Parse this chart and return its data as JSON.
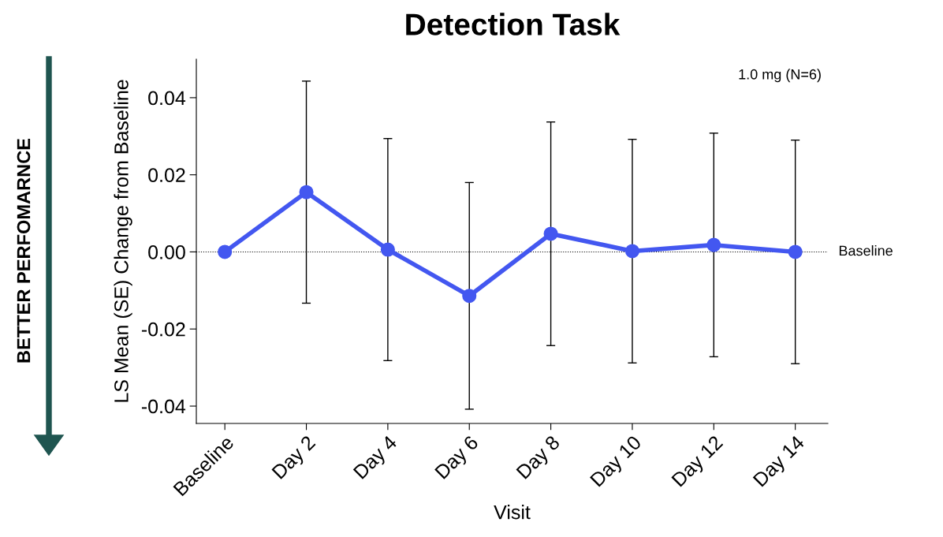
{
  "chart_data": {
    "type": "line",
    "title": "Detection Task",
    "xlabel": "Visit",
    "ylabel": "LS Mean (SE) Change from Baseline",
    "categories": [
      "Baseline",
      "Day 2",
      "Day 4",
      "Day 6",
      "Day 8",
      "Day 10",
      "Day 12",
      "Day 14"
    ],
    "series": [
      {
        "color": "#4357f0",
        "values": [
          0,
          0.0155,
          0.0006,
          -0.0114,
          0.0047,
          0.0002,
          0.0018,
          0
        ],
        "errors": [
          null,
          0.0288,
          0.0288,
          0.0294,
          0.029,
          0.029,
          0.029,
          0.029
        ]
      }
    ],
    "ylim": [
      -0.0445,
      0.05
    ],
    "yticks": [
      {
        "value": -0.04,
        "label": "-0.04"
      },
      {
        "value": -0.02,
        "label": "-0.02"
      },
      {
        "value": 0,
        "label": "0.00"
      },
      {
        "value": 0.02,
        "label": "0.02"
      },
      {
        "value": 0.04,
        "label": "0.04"
      }
    ],
    "ref_lines": [
      {
        "axis": "y",
        "value": 0,
        "label": "Baseline",
        "color": "#000000",
        "line_style": "dotted"
      }
    ],
    "marker": "circle",
    "line_style": "solid",
    "grid": false,
    "legend": false,
    "annotations": [
      "1.0 mg (N=6)",
      "BETTER PERFOMARNCE"
    ]
  }
}
